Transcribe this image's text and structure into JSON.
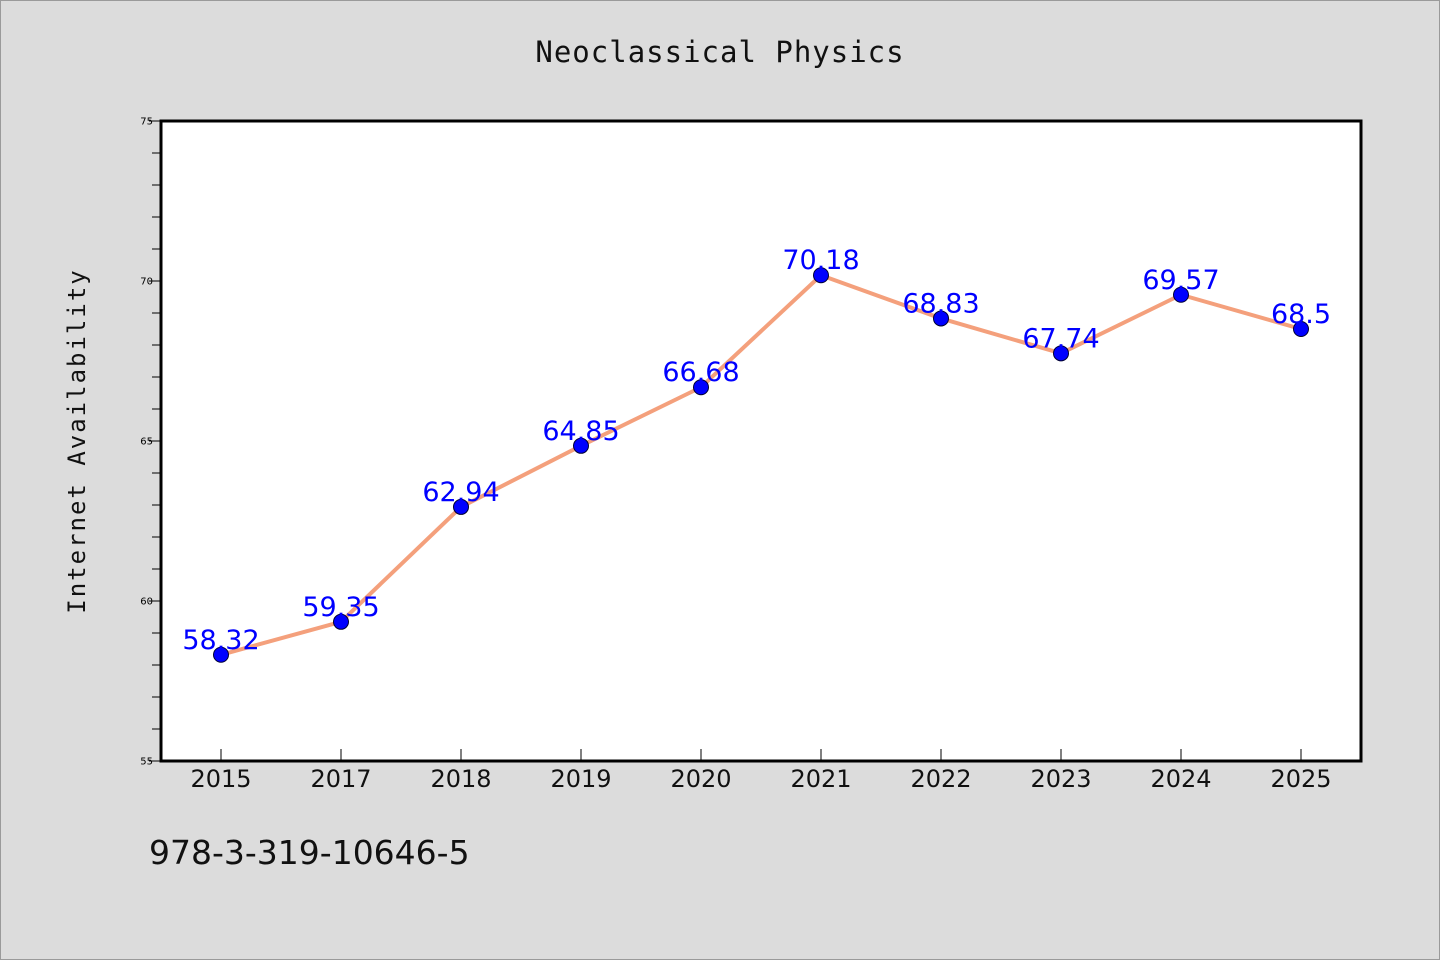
{
  "page_title": "Neoclassical Physics",
  "footer_code": "978-3-319-10646-5",
  "colors": {
    "background": "#dcdcdc",
    "plot_background": "#ffffff",
    "line": "#f4a07c",
    "marker": "#0000ff",
    "data_label": "#0000ff"
  },
  "chart_data": {
    "type": "line",
    "title": "Neoclassical Physics",
    "xlabel": "",
    "ylabel": "Internet Availability",
    "categories": [
      "2015",
      "2017",
      "2018",
      "2019",
      "2020",
      "2021",
      "2022",
      "2023",
      "2024",
      "2025"
    ],
    "series": [
      {
        "values": [
          58.32,
          59.35,
          62.94,
          64.85,
          66.68,
          70.18,
          68.83,
          67.74,
          69.57,
          68.5
        ],
        "labels": [
          "58.32",
          "59.35",
          "62.94",
          "64.85",
          "66.68",
          "70.18",
          "68.83",
          "67.74",
          "69.57",
          "68.5"
        ]
      }
    ],
    "ylim": [
      55,
      75
    ],
    "yticks": [
      "55",
      "60",
      "65",
      "70",
      "75"
    ],
    "grid": false,
    "legend": "none"
  }
}
